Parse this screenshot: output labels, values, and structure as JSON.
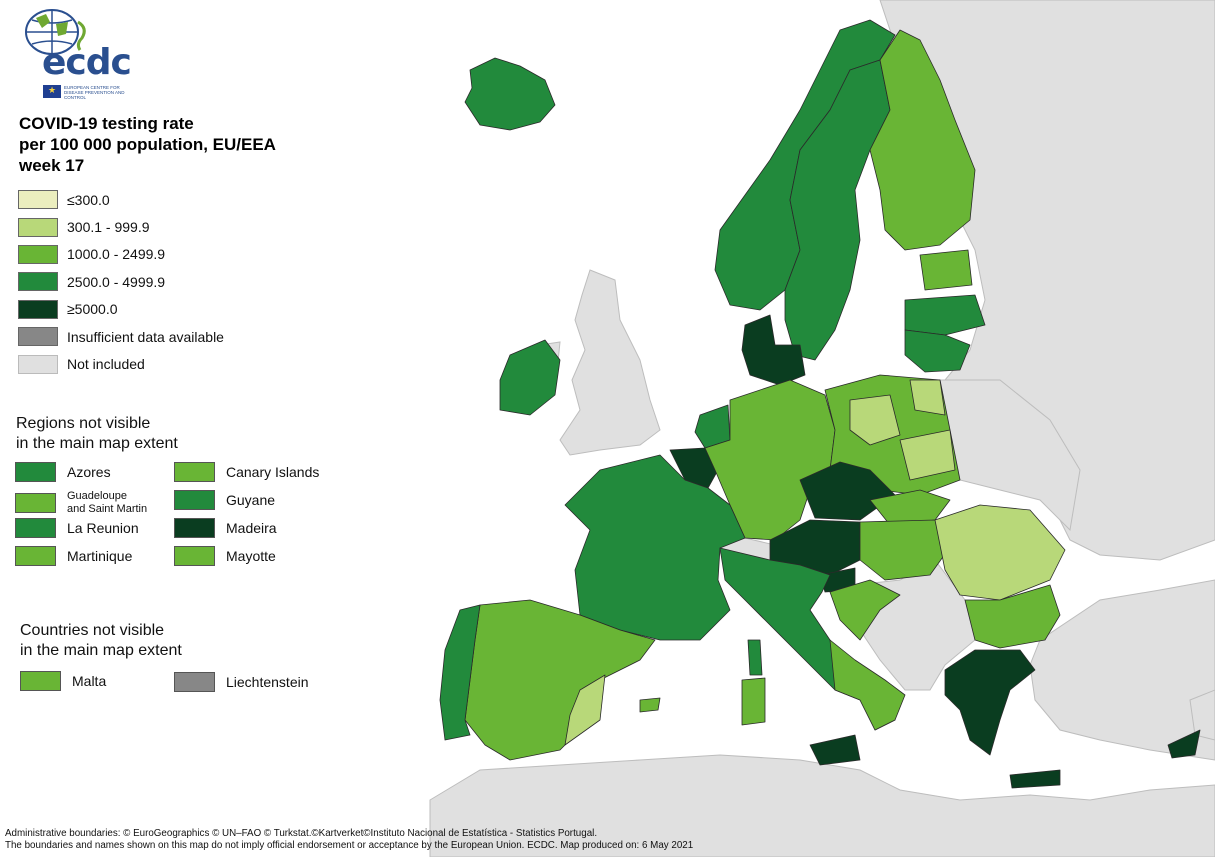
{
  "logo": {
    "text": "ecdc",
    "subtext": "EUROPEAN CENTRE FOR DISEASE PREVENTION AND CONTROL"
  },
  "title": "COVID-19 testing rate\nper 100 000 population, EU/EEA\nweek 17",
  "colors": {
    "cat1": "#ebeebe",
    "cat2": "#b8d879",
    "cat3": "#69b535",
    "cat4": "#228a3c",
    "cat5": "#0a3d20",
    "insufficient": "#878787",
    "not_included": "#e0e0e0",
    "sea": "#ffffff",
    "border": "#2a2a2a"
  },
  "legend": {
    "items": [
      {
        "label": "≤300.0",
        "color": "#ebeebe"
      },
      {
        "label": "300.1 - 999.9",
        "color": "#b8d879"
      },
      {
        "label": "1000.0 - 2499.9",
        "color": "#69b535"
      },
      {
        "label": "2500.0 - 4999.9",
        "color": "#228a3c"
      },
      {
        "label": "≥5000.0",
        "color": "#0a3d20"
      },
      {
        "label": "Insufficient data available",
        "color": "#878787"
      },
      {
        "label": "Not included",
        "color": "#e0e0e0"
      }
    ]
  },
  "regions_section": {
    "title": "Regions not visible\nin the main map extent",
    "items": [
      {
        "label": "Azores",
        "color": "#228a3c"
      },
      {
        "label": "Canary Islands",
        "color": "#69b535"
      },
      {
        "label": "Guadeloupe\nand Saint Martin",
        "color": "#69b535"
      },
      {
        "label": "Guyane",
        "color": "#228a3c"
      },
      {
        "label": "La Reunion",
        "color": "#228a3c"
      },
      {
        "label": "Madeira",
        "color": "#0a3d20"
      },
      {
        "label": "Martinique",
        "color": "#69b535"
      },
      {
        "label": "Mayotte",
        "color": "#69b535"
      }
    ]
  },
  "countries_section": {
    "title": "Countries not visible\nin the main map extent",
    "items": [
      {
        "label": "Malta",
        "color": "#69b535"
      },
      {
        "label": "Liechtenstein",
        "color": "#878787"
      }
    ]
  },
  "footer": {
    "line1": "Administrative boundaries: © EuroGeographics © UN–FAO © Turkstat.©Kartverket©Instituto Nacional de Estatística - Statistics Portugal.",
    "line2": "The boundaries and names shown on this map do not imply official endorsement or acceptance by the European Union. ECDC. Map produced on: 6 May 2021"
  }
}
